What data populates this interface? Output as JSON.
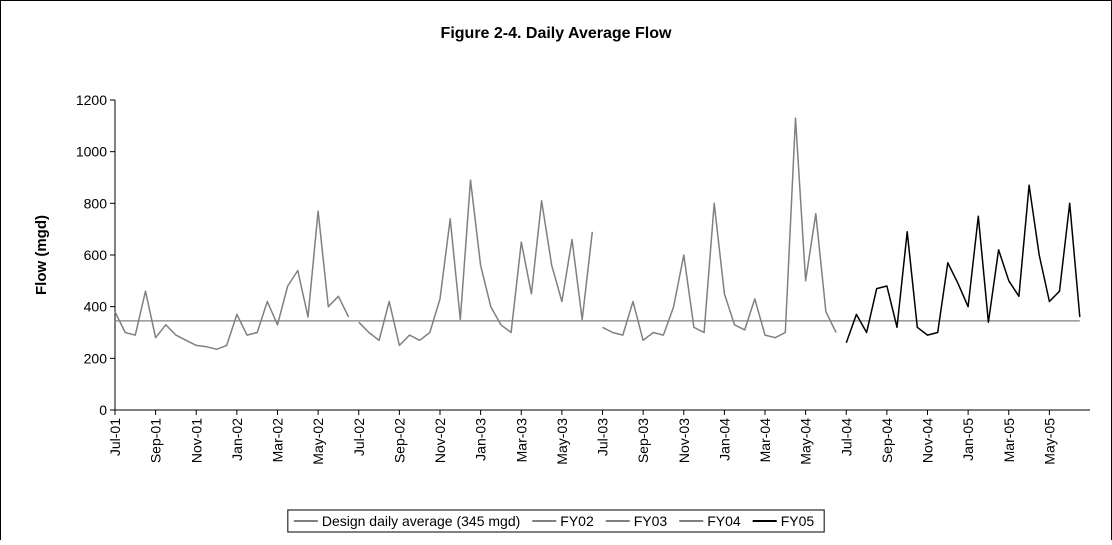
{
  "chart_data": {
    "type": "line",
    "title": "Figure 2-4.  Daily Average Flow",
    "y_label": "Flow (mgd)",
    "categories": [
      "Jul-01",
      null,
      null,
      null,
      "Sep-01",
      null,
      null,
      null,
      "Nov-01",
      null,
      null,
      null,
      "Jan-02",
      null,
      null,
      null,
      "Mar-02",
      null,
      null,
      null,
      "May-02",
      null,
      null,
      null,
      "Jul-02",
      null,
      null,
      null,
      "Sep-02",
      null,
      null,
      null,
      "Nov-02",
      null,
      null,
      null,
      "Jan-03",
      null,
      null,
      null,
      "Mar-03",
      null,
      null,
      null,
      "May-03",
      null,
      null,
      null,
      "Jul-03",
      null,
      null,
      null,
      "Sep-03",
      null,
      null,
      null,
      "Nov-03",
      null,
      null,
      null,
      "Jan-04",
      null,
      null,
      null,
      "Mar-04",
      null,
      null,
      null,
      "May-04",
      null,
      null,
      null,
      "Jul-04",
      null,
      null,
      null,
      "Sep-04",
      null,
      null,
      null,
      "Nov-04",
      null,
      null,
      null,
      "Jan-05",
      null,
      null,
      null,
      "Mar-05",
      null,
      null,
      null,
      "May-05",
      null,
      null,
      null
    ],
    "ylim": [
      0,
      1200
    ],
    "yticks": [
      0,
      200,
      400,
      600,
      800,
      1000,
      1200
    ],
    "grid": false,
    "legend": "bottom",
    "series": [
      {
        "name": "Design daily average (345 mgd)",
        "color": "#808080",
        "values": [
          345,
          345,
          345,
          345,
          345,
          345,
          345,
          345,
          345,
          345,
          345,
          345,
          345,
          345,
          345,
          345,
          345,
          345,
          345,
          345,
          345,
          345,
          345,
          345,
          345,
          345,
          345,
          345,
          345,
          345,
          345,
          345,
          345,
          345,
          345,
          345,
          345,
          345,
          345,
          345,
          345,
          345,
          345,
          345,
          345,
          345,
          345,
          345,
          345,
          345,
          345,
          345,
          345,
          345,
          345,
          345,
          345,
          345,
          345,
          345,
          345,
          345,
          345,
          345,
          345,
          345,
          345,
          345,
          345,
          345,
          345,
          345,
          345,
          345,
          345,
          345,
          345,
          345,
          345,
          345,
          345,
          345,
          345,
          345,
          345,
          345,
          345,
          345,
          345,
          345,
          345,
          345,
          345,
          345,
          345,
          345
        ]
      },
      {
        "name": "FY02",
        "color": "#808080",
        "values": [
          380,
          300,
          290,
          460,
          280,
          330,
          290,
          270,
          250,
          245,
          235,
          250,
          370,
          290,
          300,
          420,
          330,
          480,
          540,
          360,
          770,
          400,
          440,
          360,
          null,
          null,
          null,
          null,
          null,
          null,
          null,
          null,
          null,
          null,
          null,
          null,
          null,
          null,
          null,
          null,
          null,
          null,
          null,
          null,
          null,
          null,
          null,
          null,
          null,
          null,
          null,
          null,
          null,
          null,
          null,
          null,
          null,
          null,
          null,
          null,
          null,
          null,
          null,
          null,
          null,
          null,
          null,
          null,
          null,
          null,
          null,
          null,
          null,
          null,
          null,
          null,
          null,
          null,
          null,
          null,
          null,
          null,
          null,
          null,
          null,
          null,
          null,
          null,
          null,
          null,
          null,
          null,
          null,
          null,
          null,
          null
        ]
      },
      {
        "name": "FY03",
        "color": "#808080",
        "values": [
          null,
          null,
          null,
          null,
          null,
          null,
          null,
          null,
          null,
          null,
          null,
          null,
          null,
          null,
          null,
          null,
          null,
          null,
          null,
          null,
          null,
          null,
          null,
          null,
          340,
          300,
          270,
          420,
          250,
          290,
          270,
          300,
          430,
          740,
          350,
          890,
          560,
          400,
          330,
          300,
          650,
          450,
          810,
          560,
          420,
          660,
          350,
          690,
          null,
          null,
          null,
          null,
          null,
          null,
          null,
          null,
          null,
          null,
          null,
          null,
          null,
          null,
          null,
          null,
          null,
          null,
          null,
          null,
          null,
          null,
          null,
          null,
          null,
          null,
          null,
          null,
          null,
          null,
          null,
          null,
          null,
          null,
          null,
          null,
          null,
          null,
          null,
          null,
          null,
          null,
          null,
          null,
          null,
          null,
          null,
          null
        ]
      },
      {
        "name": "FY04",
        "color": "#808080",
        "values": [
          null,
          null,
          null,
          null,
          null,
          null,
          null,
          null,
          null,
          null,
          null,
          null,
          null,
          null,
          null,
          null,
          null,
          null,
          null,
          null,
          null,
          null,
          null,
          null,
          null,
          null,
          null,
          null,
          null,
          null,
          null,
          null,
          null,
          null,
          null,
          null,
          null,
          null,
          null,
          null,
          null,
          null,
          null,
          null,
          null,
          null,
          null,
          null,
          320,
          300,
          290,
          420,
          270,
          300,
          290,
          400,
          600,
          320,
          300,
          800,
          450,
          330,
          310,
          430,
          290,
          280,
          300,
          1130,
          500,
          760,
          380,
          300,
          null,
          null,
          null,
          null,
          null,
          null,
          null,
          null,
          null,
          null,
          null,
          null,
          null,
          null,
          null,
          null,
          null,
          null,
          null,
          null,
          null,
          null,
          null,
          null
        ]
      },
      {
        "name": "FY05",
        "color": "#000000",
        "values": [
          null,
          null,
          null,
          null,
          null,
          null,
          null,
          null,
          null,
          null,
          null,
          null,
          null,
          null,
          null,
          null,
          null,
          null,
          null,
          null,
          null,
          null,
          null,
          null,
          null,
          null,
          null,
          null,
          null,
          null,
          null,
          null,
          null,
          null,
          null,
          null,
          null,
          null,
          null,
          null,
          null,
          null,
          null,
          null,
          null,
          null,
          null,
          null,
          null,
          null,
          null,
          null,
          null,
          null,
          null,
          null,
          null,
          null,
          null,
          null,
          null,
          null,
          null,
          null,
          null,
          null,
          null,
          null,
          null,
          null,
          null,
          null,
          260,
          370,
          300,
          470,
          480,
          320,
          690,
          320,
          290,
          300,
          570,
          490,
          400,
          750,
          340,
          620,
          500,
          440,
          870,
          600,
          420,
          460,
          800,
          360
        ]
      }
    ]
  }
}
